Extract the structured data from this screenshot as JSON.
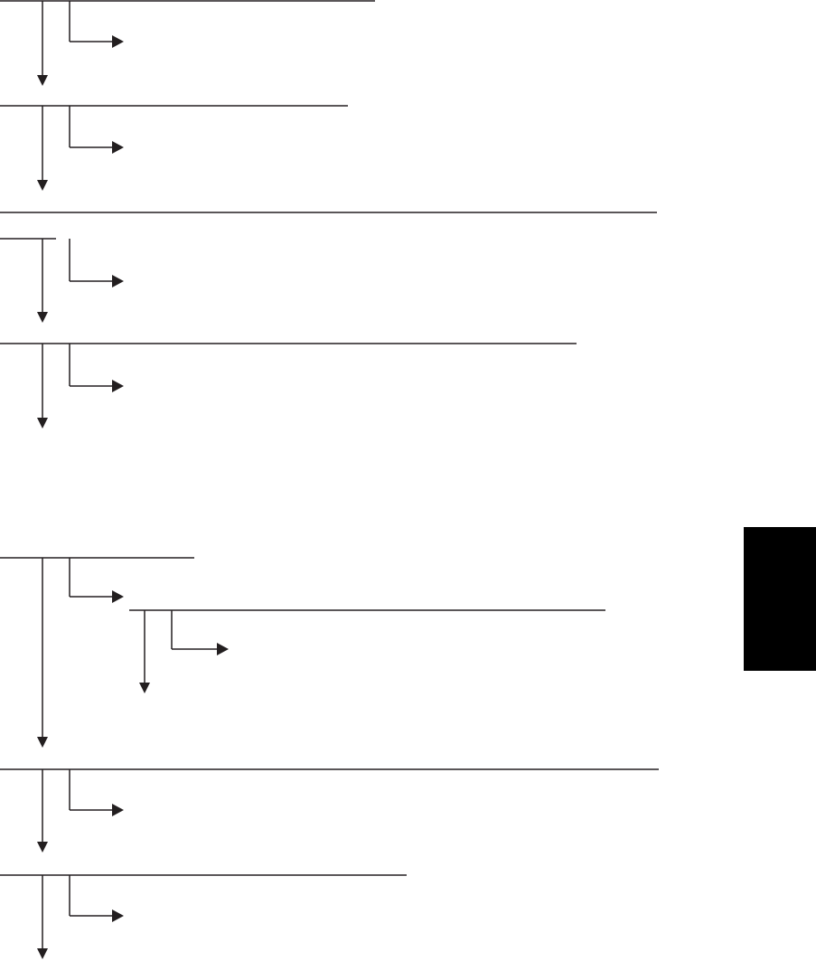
{
  "diagram": {
    "line_color": "#231f20",
    "side_tab_color": "#000000",
    "background": "#ffffff"
  }
}
